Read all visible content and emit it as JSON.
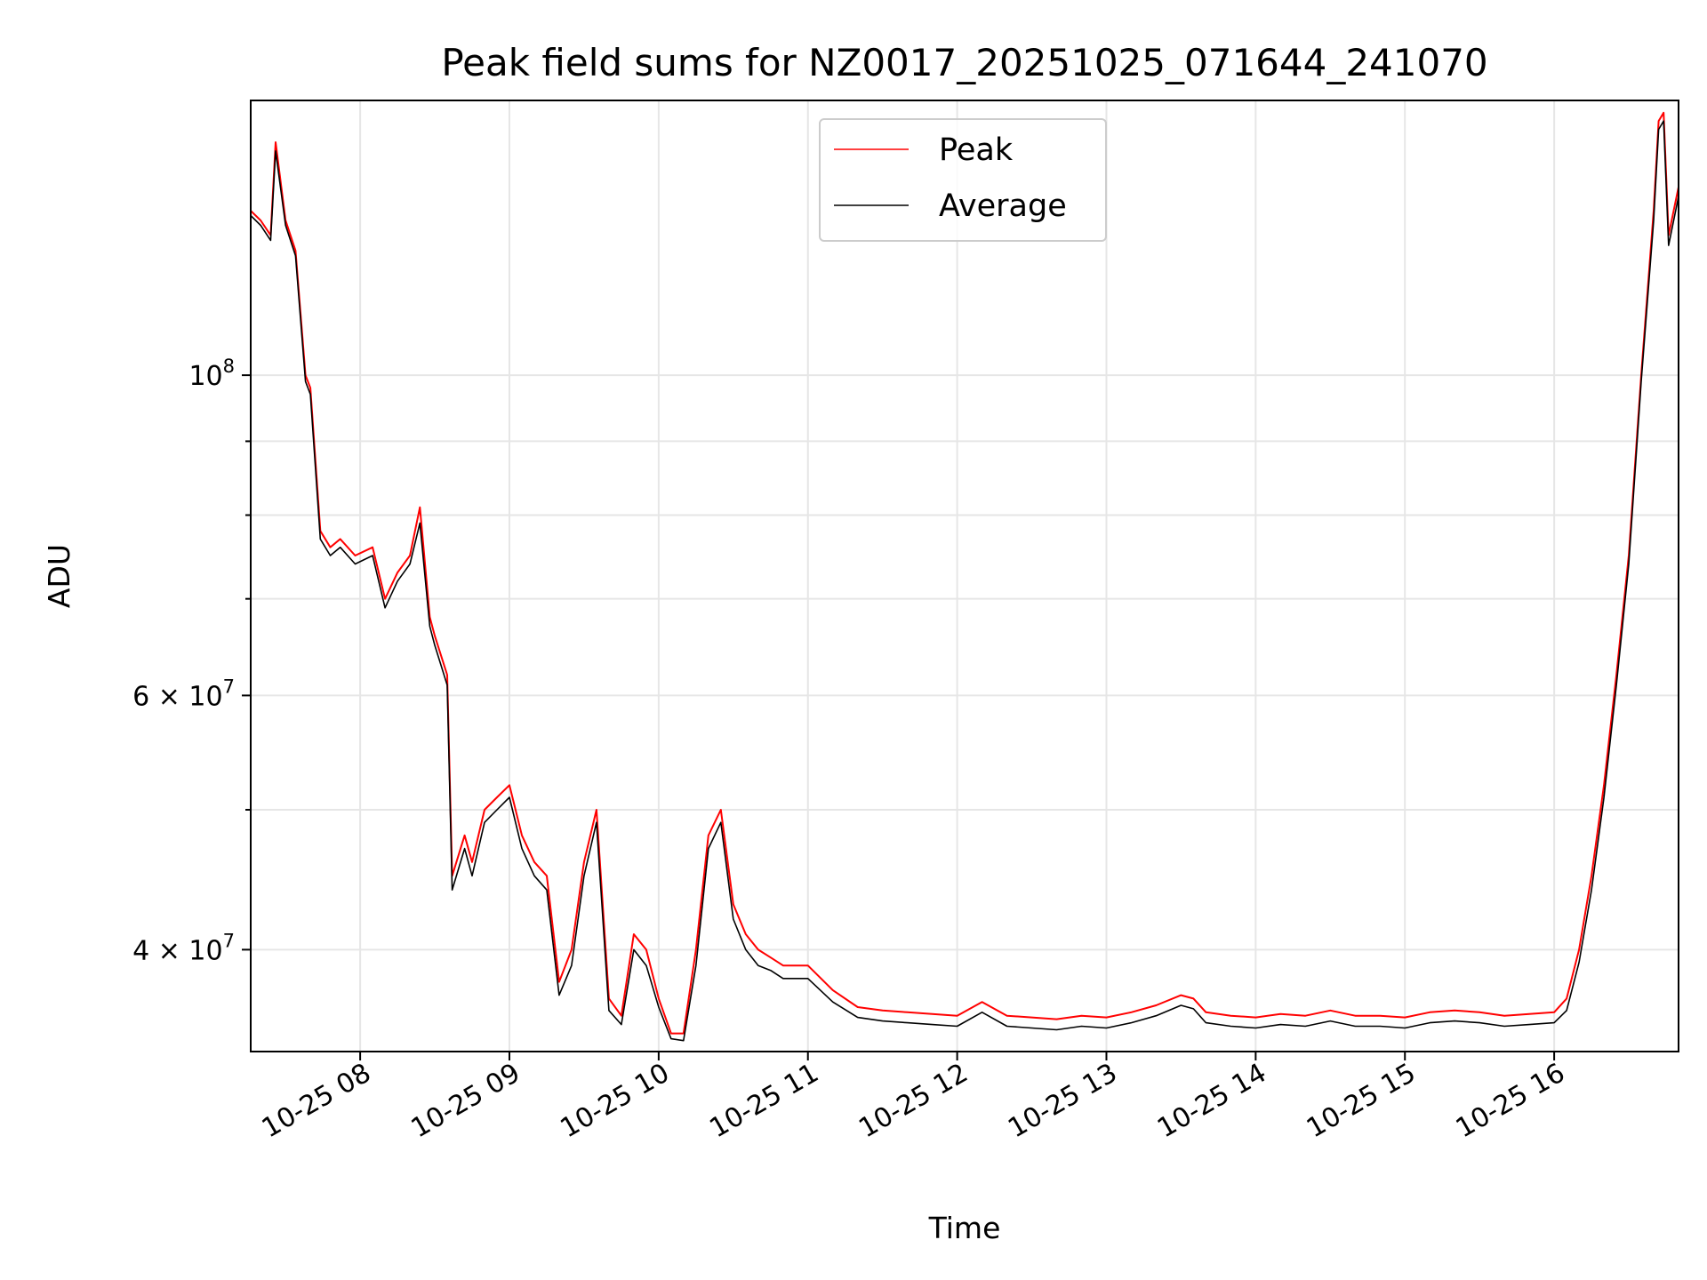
{
  "chart_data": {
    "type": "line",
    "title": "Peak field sums for NZ0017_20251025_071644_241070",
    "xlabel": "Time",
    "ylabel": "ADU",
    "yscale": "log",
    "ylim": [
      34000000,
      155000000
    ],
    "xlim": [
      "10-25 07:16",
      "10-25 16:50"
    ],
    "grid": true,
    "legend_position": "upper center",
    "x_ticks": [
      "10-25 08",
      "10-25 09",
      "10-25 10",
      "10-25 11",
      "10-25 12",
      "10-25 13",
      "10-25 14",
      "10-25 15",
      "10-25 16"
    ],
    "y_ticks": {
      "major": [
        {
          "base": "10",
          "exp": "8",
          "prefix": ""
        },
        {
          "base": "10",
          "exp": "7",
          "prefix": "6 × "
        },
        {
          "base": "10",
          "exp": "7",
          "prefix": "4 × "
        }
      ]
    },
    "x": [
      "10-25 07:16",
      "10-25 07:20",
      "10-25 07:24",
      "10-25 07:26",
      "10-25 07:30",
      "10-25 07:34",
      "10-25 07:38",
      "10-25 07:40",
      "10-25 07:44",
      "10-25 07:48",
      "10-25 07:52",
      "10-25 07:58",
      "10-25 08:05",
      "10-25 08:10",
      "10-25 08:15",
      "10-25 08:20",
      "10-25 08:24",
      "10-25 08:28",
      "10-25 08:30",
      "10-25 08:35",
      "10-25 08:37",
      "10-25 08:42",
      "10-25 08:45",
      "10-25 08:50",
      "10-25 08:55",
      "10-25 09:00",
      "10-25 09:05",
      "10-25 09:10",
      "10-25 09:15",
      "10-25 09:20",
      "10-25 09:25",
      "10-25 09:30",
      "10-25 09:35",
      "10-25 09:40",
      "10-25 09:45",
      "10-25 09:50",
      "10-25 09:55",
      "10-25 10:00",
      "10-25 10:05",
      "10-25 10:10",
      "10-25 10:15",
      "10-25 10:20",
      "10-25 10:25",
      "10-25 10:30",
      "10-25 10:35",
      "10-25 10:40",
      "10-25 10:45",
      "10-25 10:50",
      "10-25 11:00",
      "10-25 11:10",
      "10-25 11:20",
      "10-25 11:30",
      "10-25 11:40",
      "10-25 11:50",
      "10-25 12:00",
      "10-25 12:10",
      "10-25 12:20",
      "10-25 12:30",
      "10-25 12:40",
      "10-25 12:50",
      "10-25 13:00",
      "10-25 13:10",
      "10-25 13:20",
      "10-25 13:30",
      "10-25 13:35",
      "10-25 13:40",
      "10-25 13:50",
      "10-25 14:00",
      "10-25 14:10",
      "10-25 14:20",
      "10-25 14:30",
      "10-25 14:40",
      "10-25 14:50",
      "10-25 15:00",
      "10-25 15:10",
      "10-25 15:20",
      "10-25 15:30",
      "10-25 15:40",
      "10-25 15:50",
      "10-25 16:00",
      "10-25 16:05",
      "10-25 16:10",
      "10-25 16:15",
      "10-25 16:20",
      "10-25 16:25",
      "10-25 16:30",
      "10-25 16:35",
      "10-25 16:40",
      "10-25 16:42",
      "10-25 16:44",
      "10-25 16:46",
      "10-25 16:50"
    ],
    "series": [
      {
        "name": "Peak",
        "color": "#ff0000",
        "values": [
          130000000,
          128000000,
          125000000,
          145000000,
          128000000,
          122000000,
          100000000,
          98000000,
          78000000,
          76000000,
          77000000,
          75000000,
          76000000,
          70000000,
          73000000,
          75000000,
          81000000,
          68000000,
          66000000,
          62000000,
          45000000,
          48000000,
          46000000,
          50000000,
          51000000,
          52000000,
          48000000,
          46000000,
          45000000,
          38000000,
          40000000,
          46000000,
          50000000,
          37000000,
          36000000,
          41000000,
          40000000,
          37000000,
          35000000,
          35000000,
          40000000,
          48000000,
          50000000,
          43000000,
          41000000,
          40000000,
          39500000,
          39000000,
          39000000,
          37500000,
          36500000,
          36300000,
          36200000,
          36100000,
          36000000,
          36800000,
          36000000,
          35900000,
          35800000,
          36000000,
          35900000,
          36200000,
          36600000,
          37200000,
          37000000,
          36200000,
          36000000,
          35900000,
          36100000,
          36000000,
          36300000,
          36000000,
          36000000,
          35900000,
          36200000,
          36300000,
          36200000,
          36000000,
          36100000,
          36200000,
          37000000,
          40000000,
          45000000,
          52000000,
          62000000,
          75000000,
          100000000,
          130000000,
          150000000,
          152000000,
          125000000,
          135000000
        ]
      },
      {
        "name": "Average",
        "color": "#000000",
        "values": [
          129000000,
          127000000,
          124000000,
          143000000,
          127000000,
          121000000,
          99000000,
          97000000,
          77000000,
          75000000,
          76000000,
          74000000,
          75000000,
          69000000,
          72000000,
          74000000,
          79000000,
          67000000,
          65000000,
          61000000,
          44000000,
          47000000,
          45000000,
          49000000,
          50000000,
          51000000,
          47000000,
          45000000,
          44000000,
          37200000,
          39000000,
          45000000,
          49000000,
          36300000,
          35500000,
          40000000,
          39000000,
          36500000,
          34700000,
          34600000,
          39000000,
          47000000,
          49000000,
          42000000,
          40000000,
          39000000,
          38700000,
          38200000,
          38200000,
          36800000,
          35900000,
          35700000,
          35600000,
          35500000,
          35400000,
          36200000,
          35400000,
          35300000,
          35200000,
          35400000,
          35300000,
          35600000,
          36000000,
          36600000,
          36400000,
          35600000,
          35400000,
          35300000,
          35500000,
          35400000,
          35700000,
          35400000,
          35400000,
          35300000,
          35600000,
          35700000,
          35600000,
          35400000,
          35500000,
          35600000,
          36300000,
          39200000,
          44000000,
          51000000,
          61000000,
          74000000,
          99000000,
          128000000,
          148000000,
          150000000,
          123000000,
          133000000
        ]
      }
    ]
  }
}
